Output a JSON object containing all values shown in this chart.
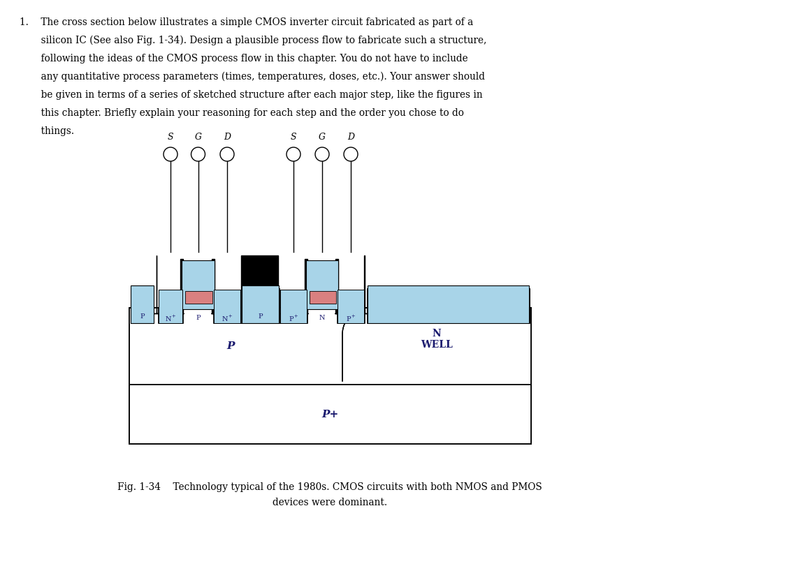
{
  "bg_color": "#ffffff",
  "light_blue": "#a8d4e8",
  "salmon": "#d98080",
  "black": "#000000",
  "white": "#ffffff",
  "text_color": "#1a1a6e",
  "question_lines": [
    "1.    The cross section below illustrates a simple CMOS inverter circuit fabricated as part of a",
    "       silicon IC (See also Fig. 1-34). Design a plausible process flow to fabricate such a structure,",
    "       following the ideas of the CMOS process flow in this chapter. You do not have to include",
    "       any quantitative process parameters (times, temperatures, doses, etc.). Your answer should",
    "       be given in terms of a series of sketched structure after each major step, like the figures in",
    "       this chapter. Briefly explain your reasoning for each step and the order you chose to do",
    "       things."
  ],
  "fig_caption_line1": "Fig. 1-34    Technology typical of the 1980s. CMOS circuits with both NMOS and PMOS",
  "fig_caption_line2": "devices were dominant."
}
